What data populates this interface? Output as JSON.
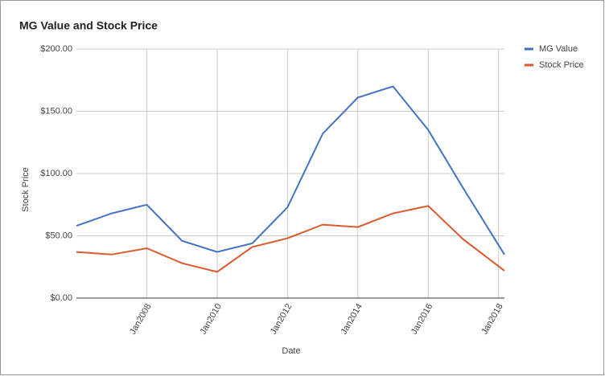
{
  "chart_data": {
    "type": "line",
    "title": "MG Value and Stock Price",
    "x_label": "Date",
    "y_label": "Stock Price",
    "x": [
      "2006-01",
      "2007-01",
      "2008-01",
      "2009-01",
      "2010-01",
      "2011-01",
      "2012-01",
      "2013-01",
      "2014-01",
      "2015-01",
      "2016-01",
      "2017-01",
      "2018-03"
    ],
    "series": [
      {
        "name": "MG Value",
        "color": "#4472c4",
        "values": [
          58,
          68,
          75,
          46,
          37,
          44,
          73,
          132,
          161,
          170,
          135,
          88,
          35
        ]
      },
      {
        "name": "Stock Price",
        "color": "#dc5a2d",
        "values": [
          37,
          35,
          40,
          28,
          21,
          41,
          48,
          59,
          57,
          68,
          74,
          47,
          22
        ]
      }
    ],
    "xlim": [
      "2006-01",
      "2018-03"
    ],
    "xticks": [
      {
        "value": "2008-01",
        "label": "Jan2008"
      },
      {
        "value": "2010-01",
        "label": "Jan2010"
      },
      {
        "value": "2012-01",
        "label": "Jan2012"
      },
      {
        "value": "2014-01",
        "label": "Jan2014"
      },
      {
        "value": "2016-01",
        "label": "Jan2016"
      },
      {
        "value": "2018-01",
        "label": "Jan2018"
      }
    ],
    "ylim": [
      0,
      200
    ],
    "yticks": [
      {
        "value": 0,
        "label": "$0.00"
      },
      {
        "value": 50,
        "label": "$50.00"
      },
      {
        "value": 100,
        "label": "$100.00"
      },
      {
        "value": 150,
        "label": "$150.00"
      },
      {
        "value": 200,
        "label": "$200.00"
      }
    ],
    "grid": true,
    "legend": "right"
  }
}
